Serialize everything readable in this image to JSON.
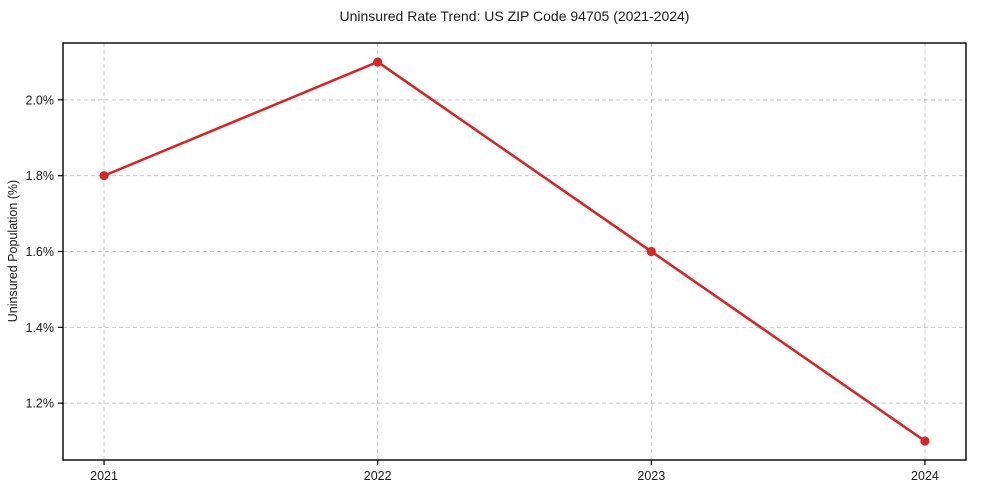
{
  "chart_data": {
    "type": "line",
    "title": "Uninsured Rate Trend: US ZIP Code 94705 (2021-2024)",
    "xlabel": "",
    "ylabel": "Uninsured Population (%)",
    "x": [
      2021,
      2022,
      2023,
      2024
    ],
    "values": [
      1.8,
      2.1,
      1.6,
      1.1
    ],
    "xlim": [
      2020.85,
      2024.15
    ],
    "ylim": [
      1.05,
      2.15
    ],
    "xticks": {
      "values": [
        2021,
        2022,
        2023,
        2024
      ],
      "labels": [
        "2021",
        "2022",
        "2023",
        "2024"
      ]
    },
    "yticks": {
      "values": [
        1.2,
        1.4,
        1.6,
        1.8,
        2.0
      ],
      "labels": [
        "1.2%",
        "1.4%",
        "1.6%",
        "1.8%",
        "2.0%"
      ]
    },
    "grid": "dashed",
    "legend": "none",
    "marker": "circle",
    "line_color": "#d62728",
    "grid_color": "#c9c9c9",
    "axis_color": "#000000",
    "text_color": "#1a1a1a",
    "background": "#ffffff"
  }
}
